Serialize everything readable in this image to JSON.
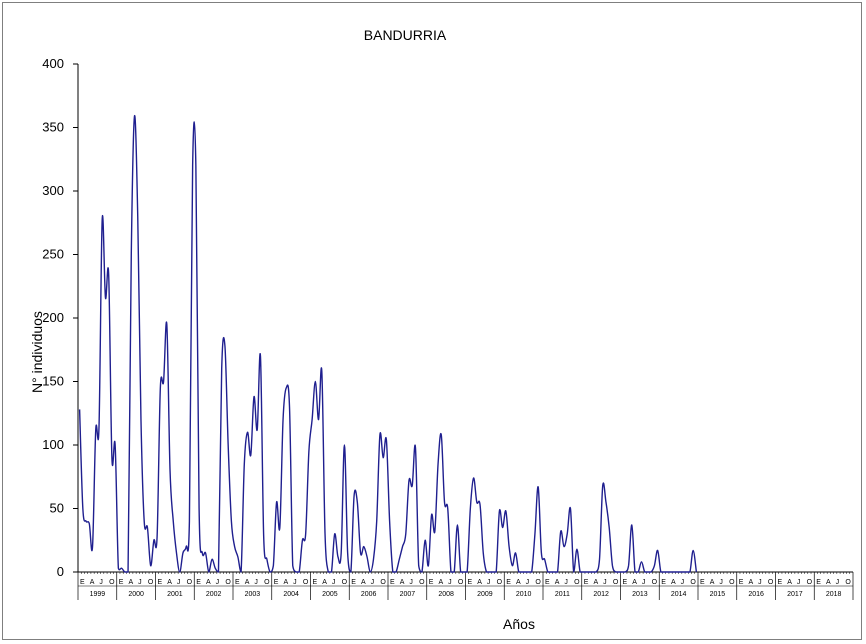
{
  "chart_data": {
    "type": "line",
    "title": "BANDURRIA",
    "xlabel": "Años",
    "ylabel": "N° individuos",
    "ylim": [
      0,
      400
    ],
    "yticks": [
      0,
      50,
      100,
      150,
      200,
      250,
      300,
      350,
      400
    ],
    "ytick_labels": [
      "0",
      "50",
      "100",
      "150",
      "200",
      "250",
      "300",
      "350",
      "400"
    ],
    "month_labels": [
      "E",
      "A",
      "J",
      "O"
    ],
    "years": [
      "1999",
      "2000",
      "2001",
      "2002",
      "2003",
      "2004",
      "2005",
      "2006",
      "2007",
      "2008",
      "2009",
      "2010",
      "2011",
      "2012",
      "2013",
      "2014",
      "2015",
      "2016",
      "2017",
      "2018"
    ],
    "grid": false,
    "legend": "none",
    "line_color": "#1f1f8f",
    "series": [
      {
        "x_start": "1999-01",
        "x_step": "1 month",
        "values": [
          128,
          50,
          40,
          38,
          20,
          112,
          114,
          278,
          216,
          234,
          90,
          100,
          3,
          3,
          0,
          0,
          250,
          359,
          280,
          120,
          40,
          35,
          5,
          25,
          28,
          145,
          150,
          195,
          80,
          40,
          15,
          0,
          15,
          20,
          40,
          320,
          320,
          50,
          15,
          15,
          0,
          10,
          3,
          0,
          160,
          178,
          100,
          40,
          20,
          12,
          0,
          85,
          110,
          92,
          138,
          112,
          170,
          28,
          10,
          0,
          5,
          55,
          35,
          120,
          145,
          130,
          5,
          0,
          0,
          25,
          30,
          95,
          120,
          150,
          120,
          158,
          30,
          0,
          0,
          30,
          12,
          15,
          100,
          15,
          0,
          60,
          55,
          15,
          20,
          12,
          0,
          10,
          40,
          108,
          90,
          104,
          40,
          0,
          0,
          10,
          20,
          30,
          72,
          68,
          98,
          5,
          0,
          25,
          5,
          45,
          32,
          85,
          108,
          55,
          50,
          0,
          0,
          37,
          0,
          0,
          0,
          50,
          74,
          55,
          53,
          15,
          0,
          0,
          0,
          0,
          48,
          35,
          48,
          20,
          5,
          15,
          0,
          0,
          0,
          0,
          0,
          30,
          67,
          15,
          10,
          0,
          0,
          0,
          0,
          32,
          20,
          30,
          50,
          0,
          18,
          0,
          0,
          0,
          0,
          0,
          0,
          10,
          68,
          55,
          35,
          5,
          0,
          0,
          0,
          0,
          5,
          37,
          0,
          0,
          8,
          0,
          0,
          0,
          5,
          17,
          0,
          0,
          0,
          0,
          0,
          0,
          0,
          0,
          0,
          0,
          17,
          0
        ]
      }
    ]
  }
}
